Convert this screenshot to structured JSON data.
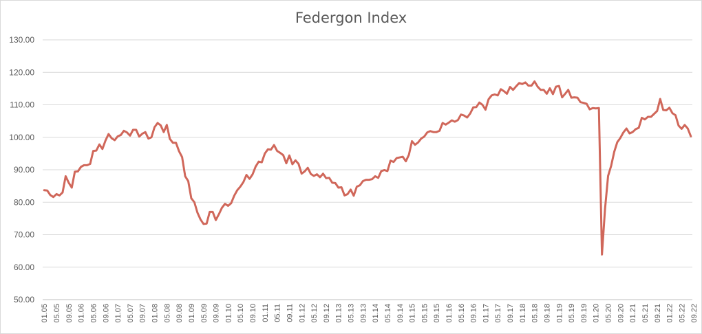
{
  "chart_data": {
    "type": "line",
    "title": "Federgon Index",
    "xlabel": "",
    "ylabel": "",
    "ylim": [
      50,
      130
    ],
    "yticks": [
      "50.00",
      "60.00",
      "70.00",
      "80.00",
      "90.00",
      "100.00",
      "110.00",
      "120.00",
      "130.00"
    ],
    "x_tick_labels": [
      "01.05",
      "05.05",
      "09.05",
      "01.06",
      "05.06",
      "09.06",
      "01.07",
      "05.07",
      "09.07",
      "01.08",
      "05.08",
      "09.08",
      "01.09",
      "05.09",
      "09.09",
      "01.10",
      "05.10",
      "09.10",
      "01.11",
      "05.11",
      "09.11",
      "01.12",
      "05.12",
      "09.12",
      "01.13",
      "05.13",
      "09.13",
      "01.14",
      "05.14",
      "09.14",
      "01.15",
      "05.15",
      "09.15",
      "01.16",
      "05.16",
      "09.16",
      "01.17",
      "05.17",
      "09.17",
      "01.18",
      "05.18",
      "09.18",
      "01.19",
      "05.19",
      "09.19",
      "01.20",
      "05.20",
      "09.20",
      "01.21",
      "05.21",
      "09.21",
      "01.22",
      "05.22",
      "09.22"
    ],
    "grid": true,
    "legend": "none",
    "series": [
      {
        "color": "#d0675a",
        "values": [
          83.7,
          83.6,
          82.2,
          81.6,
          82.5,
          82.1,
          83.0,
          88.0,
          86.0,
          84.5,
          89.4,
          89.5,
          90.9,
          91.4,
          91.4,
          91.8,
          95.8,
          95.9,
          97.8,
          96.4,
          99.0,
          101.0,
          99.7,
          99.1,
          100.3,
          100.7,
          102.0,
          101.5,
          100.5,
          102.3,
          102.3,
          100.2,
          101.1,
          101.6,
          99.6,
          100.0,
          103.1,
          104.4,
          103.7,
          101.6,
          103.8,
          99.5,
          98.3,
          98.3,
          95.7,
          93.9,
          88.0,
          86.5,
          81.2,
          80.0,
          76.8,
          74.7,
          73.3,
          73.4,
          77.0,
          77.0,
          74.5,
          76.3,
          78.3,
          79.5,
          78.9,
          79.7,
          82.0,
          83.7,
          84.8,
          86.2,
          88.4,
          87.2,
          88.6,
          91.0,
          92.5,
          92.3,
          95.0,
          96.3,
          96.2,
          97.6,
          95.8,
          95.2,
          94.5,
          92.0,
          94.4,
          91.7,
          92.9,
          91.8,
          88.8,
          89.5,
          90.6,
          88.7,
          88.1,
          88.6,
          87.7,
          88.8,
          87.4,
          87.5,
          86.0,
          85.9,
          84.5,
          84.6,
          82.1,
          82.5,
          83.9,
          82.0,
          84.8,
          85.2,
          86.5,
          86.9,
          86.9,
          87.1,
          88.0,
          87.5,
          89.6,
          89.9,
          89.6,
          92.8,
          92.4,
          93.6,
          93.8,
          94.0,
          92.6,
          94.6,
          98.8,
          97.7,
          98.4,
          99.6,
          100.2,
          101.5,
          101.9,
          101.6,
          101.6,
          102.0,
          104.4,
          103.9,
          104.5,
          105.2,
          104.8,
          105.3,
          107.0,
          106.7,
          106.1,
          107.3,
          109.2,
          109.3,
          110.7,
          110.0,
          108.5,
          111.7,
          112.9,
          113.2,
          112.9,
          114.8,
          114.2,
          113.4,
          115.5,
          114.6,
          115.7,
          116.7,
          116.4,
          116.9,
          115.9,
          115.9,
          117.2,
          115.6,
          114.6,
          114.6,
          113.4,
          115.1,
          113.3,
          115.6,
          115.8,
          112.3,
          113.4,
          114.6,
          112.2,
          112.3,
          112.2,
          110.8,
          110.6,
          110.3,
          108.6,
          109.0,
          108.9,
          109.0,
          63.9,
          77.9,
          88.1,
          91.2,
          95.5,
          98.5,
          99.8,
          101.5,
          102.7,
          101.2,
          101.6,
          102.5,
          102.9,
          106.0,
          105.5,
          106.3,
          106.3,
          107.2,
          108.1,
          111.8,
          108.4,
          108.3,
          109.1,
          107.4,
          106.8,
          103.6,
          102.6,
          103.8,
          102.7,
          100.3
        ]
      }
    ]
  }
}
